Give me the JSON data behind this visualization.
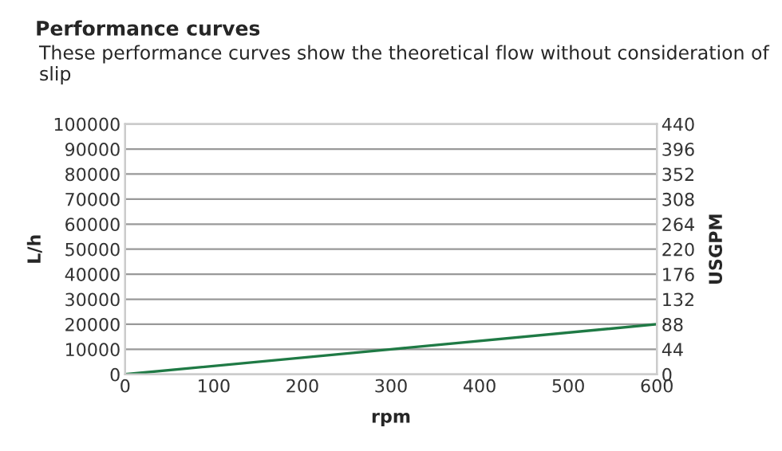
{
  "chart_data": {
    "type": "line",
    "title": "Performance curves",
    "subtitle": "These performance curves show the theoretical flow without consideration of slip",
    "xlabel": "rpm",
    "ylabel": "L/h",
    "y2label": "USGPM",
    "x": [
      0,
      300,
      600
    ],
    "series": [
      {
        "color": "#1f7a45",
        "values": [
          0,
          10000,
          20000
        ]
      }
    ],
    "xlim": [
      0,
      600
    ],
    "xticks": [
      0,
      100,
      200,
      300,
      400,
      500,
      600
    ],
    "ylim": [
      0,
      100000
    ],
    "yticks": [
      0,
      10000,
      20000,
      30000,
      40000,
      50000,
      60000,
      70000,
      80000,
      90000,
      100000
    ],
    "y2lim": [
      0,
      440
    ],
    "y2ticks": [
      0,
      44,
      88,
      132,
      176,
      220,
      264,
      308,
      352,
      396,
      440
    ],
    "grid": "y",
    "legend": false
  }
}
